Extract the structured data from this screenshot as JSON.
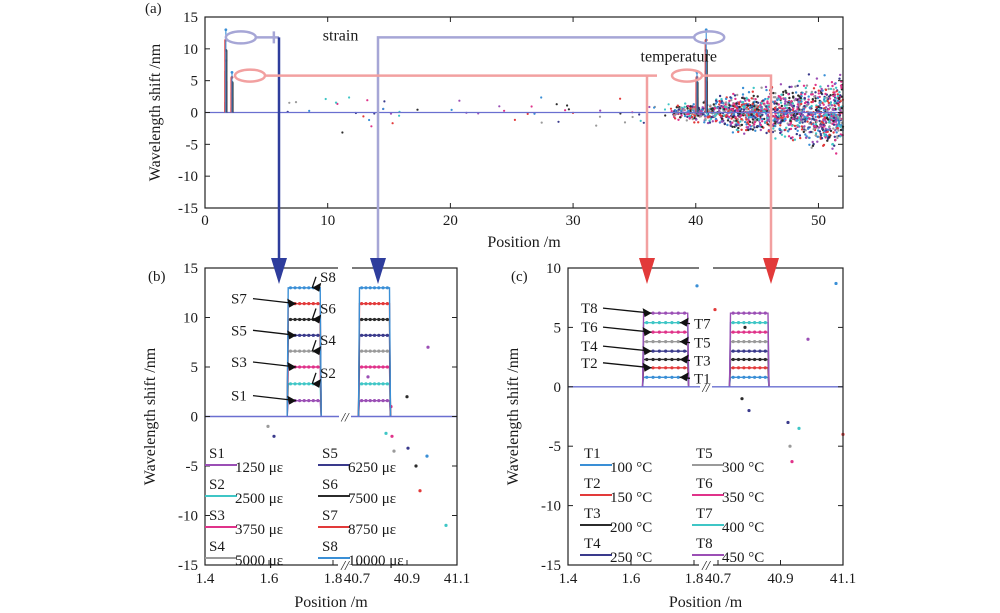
{
  "colors": {
    "strain_bracket": "#a6a6d6",
    "temp_bracket": "#f2a0a0",
    "strain_arrow": "#2e3d9c",
    "temp_arrow": "#e23a3a",
    "axis": "#222222",
    "trace": "#6a6fd0"
  },
  "chart_data": [
    {
      "id": "a",
      "type": "scatter",
      "panel_label": "(a)",
      "title": "",
      "xlabel": "Position /m",
      "ylabel": "Wavelength shift /nm",
      "xlim": [
        0,
        52
      ],
      "ylim": [
        -15,
        15
      ],
      "xticks": [
        0,
        10,
        20,
        30,
        40,
        50
      ],
      "yticks": [
        -15,
        -10,
        -5,
        0,
        5,
        10,
        15
      ],
      "annotations": [
        {
          "text": "strain",
          "at": [
            9.6,
            11.3
          ]
        },
        {
          "text": "temperature",
          "at": [
            35.5,
            8.0
          ]
        }
      ],
      "features": [
        {
          "name": "strain sensor 1",
          "x": 1.7,
          "peak": 13.0
        },
        {
          "name": "temperature sensor 1",
          "x": 2.2,
          "peak": 6.3
        },
        {
          "name": "strain sensor 2",
          "x": 40.85,
          "peak": 13.0
        },
        {
          "name": "temperature sensor 2",
          "x": 40.1,
          "peak": 6.3
        }
      ],
      "noise_region": {
        "x_range": [
          38,
          52
        ],
        "y_range": [
          -13,
          14
        ]
      }
    },
    {
      "id": "b",
      "type": "line",
      "panel_label": "(b)",
      "xlabel": "Position /m",
      "ylabel": "Wavelength shift /nm",
      "ylim": [
        -15,
        15
      ],
      "yticks": [
        -15,
        -10,
        -5,
        0,
        5,
        10,
        15
      ],
      "xtick_labels": [
        "1.4",
        "1.6",
        "1.8",
        "40.7",
        "40.9",
        "41.1"
      ],
      "break_marker": "//",
      "series": [
        {
          "name": "S1",
          "value_label": "1250 με",
          "shift": 1.6,
          "color": "#9b4fb5"
        },
        {
          "name": "S2",
          "value_label": "2500 με",
          "shift": 3.3,
          "color": "#3fc6c6"
        },
        {
          "name": "S3",
          "value_label": "3750 με",
          "shift": 5.0,
          "color": "#e0338a"
        },
        {
          "name": "S4",
          "value_label": "5000 με",
          "shift": 6.6,
          "color": "#9a9a9a"
        },
        {
          "name": "S5",
          "value_label": "6250 με",
          "shift": 8.2,
          "color": "#3a3a8c"
        },
        {
          "name": "S6",
          "value_label": "7500 με",
          "shift": 9.8,
          "color": "#2b2b2b"
        },
        {
          "name": "S7",
          "value_label": "8750 με",
          "shift": 11.4,
          "color": "#e23a3a"
        },
        {
          "name": "S8",
          "value_label": "10000 με",
          "shift": 13.0,
          "color": "#3a8fd6"
        }
      ]
    },
    {
      "id": "c",
      "type": "line",
      "panel_label": "(c)",
      "xlabel": "Position /m",
      "ylabel": "Wavelength shift /nm",
      "ylim": [
        -15,
        10
      ],
      "yticks": [
        -15,
        -10,
        -5,
        0,
        5,
        10
      ],
      "xtick_labels": [
        "1.4",
        "1.6",
        "1.8",
        "40.7",
        "40.9",
        "41.1"
      ],
      "break_marker": "//",
      "series": [
        {
          "name": "T1",
          "value_label": "100 °C",
          "shift": 0.8,
          "color": "#3a8fd6"
        },
        {
          "name": "T2",
          "value_label": "150 °C",
          "shift": 1.6,
          "color": "#e23a3a"
        },
        {
          "name": "T3",
          "value_label": "200 °C",
          "shift": 2.3,
          "color": "#2b2b2b"
        },
        {
          "name": "T4",
          "value_label": "250 °C",
          "shift": 3.0,
          "color": "#3a3a8c"
        },
        {
          "name": "T5",
          "value_label": "300 °C",
          "shift": 3.8,
          "color": "#9a9a9a"
        },
        {
          "name": "T6",
          "value_label": "350 °C",
          "shift": 4.6,
          "color": "#e0338a"
        },
        {
          "name": "T7",
          "value_label": "400 °C",
          "shift": 5.4,
          "color": "#3fc6c6"
        },
        {
          "name": "T8",
          "value_label": "450 °C",
          "shift": 6.2,
          "color": "#9b4fb5"
        }
      ]
    }
  ]
}
